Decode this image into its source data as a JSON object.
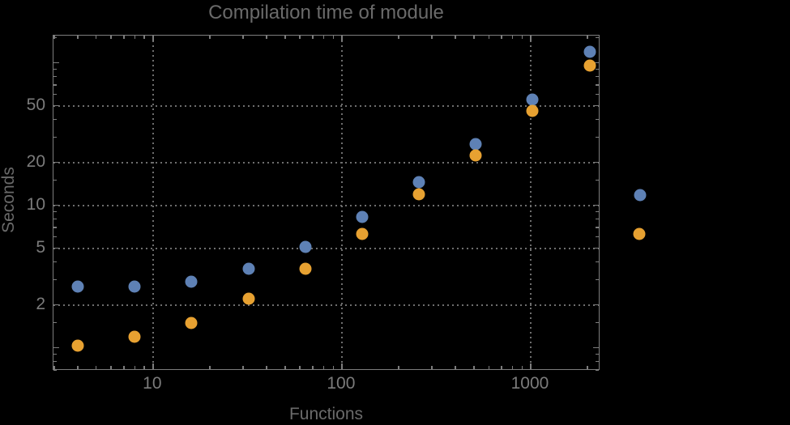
{
  "title": "Compilation time of module",
  "xlabel": "Functions",
  "ylabel": "Seconds",
  "colors": {
    "background": "#000000",
    "frame": "#7D7D7D",
    "grid": "#6E6E6E",
    "title_text": "#6A6A6A",
    "tick_text": "#7B7B7B"
  },
  "chart_data": {
    "type": "scatter",
    "title": "Compilation time of module",
    "xlabel": "Functions",
    "ylabel": "Seconds",
    "x_scale": "log",
    "y_scale": "log",
    "grid": "dotted",
    "x_range": [
      2.97,
      2340
    ],
    "y_range": [
      0.69,
      155
    ],
    "x": [
      4,
      8,
      16,
      32,
      64,
      128,
      256,
      512,
      1024,
      2048
    ],
    "series": [
      {
        "name": "series-1-blue",
        "color": "#5E81B5",
        "values": [
          2.7,
          2.7,
          2.9,
          3.6,
          5.1,
          8.3,
          14.5,
          27,
          55,
          119
        ]
      },
      {
        "name": "series-2-orange",
        "color": "#E7A131",
        "values": [
          1.03,
          1.2,
          1.5,
          2.2,
          3.6,
          6.3,
          11.9,
          22.5,
          46,
          96
        ]
      }
    ],
    "x_tick_values": [
      10,
      100,
      1000
    ],
    "x_tick_labels": [
      "10",
      "100",
      "1000"
    ],
    "y_tick_values": [
      2,
      5,
      10,
      20,
      50
    ],
    "y_tick_labels": [
      "2",
      "5",
      "10",
      "20",
      "50"
    ],
    "legend": {
      "type": "markers-only",
      "position": "right-of-plot"
    }
  }
}
